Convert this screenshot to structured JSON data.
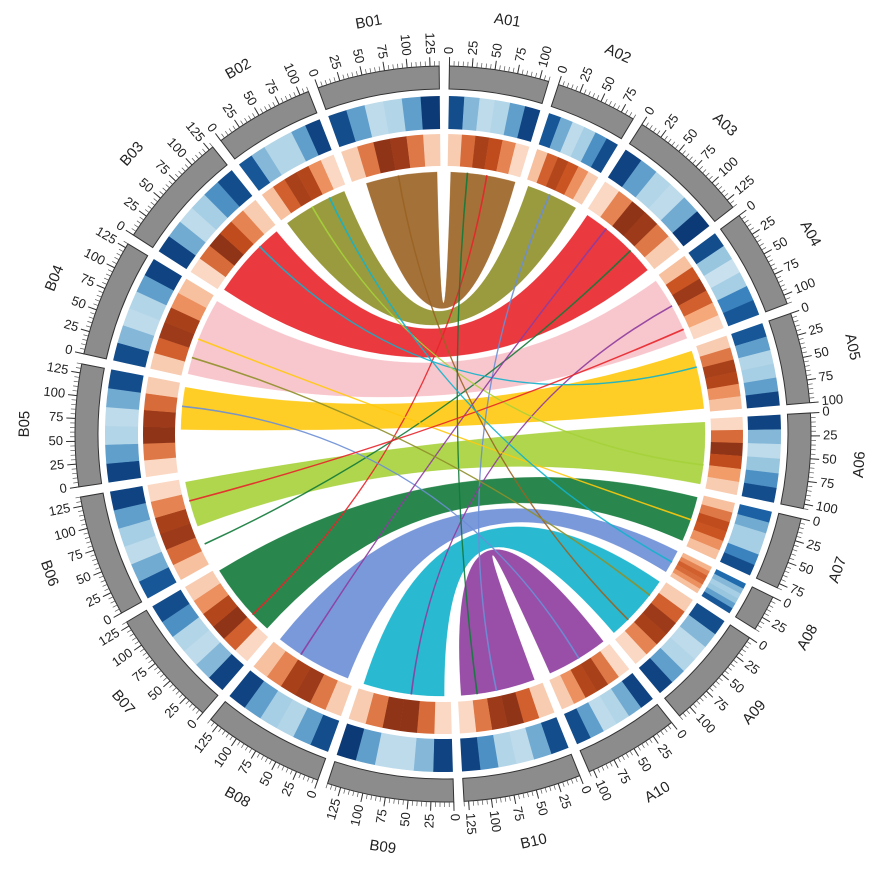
{
  "chart_data": {
    "type": "circos",
    "minor_tick_step": 5,
    "chromosomes": [
      {
        "name": "A01",
        "length": 110,
        "ticks": [
          0,
          25,
          50,
          75,
          100
        ],
        "gene_density": [
          0.85,
          0.4,
          0.2,
          0.25,
          0.5,
          0.9
        ],
        "repeat_density": [
          0.15,
          0.55,
          0.8,
          0.7,
          0.45,
          0.1
        ]
      },
      {
        "name": "A02",
        "length": 90,
        "ticks": [
          0,
          25,
          50,
          75
        ],
        "gene_density": [
          0.8,
          0.45,
          0.2,
          0.3,
          0.55,
          0.85
        ],
        "repeat_density": [
          0.2,
          0.6,
          0.75,
          0.65,
          0.4,
          0.15
        ]
      },
      {
        "name": "A03",
        "length": 135,
        "ticks": [
          0,
          25,
          50,
          75,
          100,
          125
        ],
        "gene_density": [
          0.9,
          0.5,
          0.25,
          0.2,
          0.45,
          0.95
        ],
        "repeat_density": [
          0.1,
          0.45,
          0.9,
          0.85,
          0.5,
          0.15
        ]
      },
      {
        "name": "A04",
        "length": 110,
        "ticks": [
          0,
          25,
          50,
          75,
          100
        ],
        "gene_density": [
          0.85,
          0.35,
          0.15,
          0.3,
          0.6,
          0.8
        ],
        "repeat_density": [
          0.2,
          0.65,
          0.85,
          0.6,
          0.3,
          0.1
        ]
      },
      {
        "name": "A05",
        "length": 100,
        "ticks": [
          0,
          25,
          50,
          75,
          100
        ],
        "gene_density": [
          0.8,
          0.5,
          0.25,
          0.3,
          0.5,
          0.9
        ],
        "repeat_density": [
          0.15,
          0.5,
          0.8,
          0.75,
          0.4,
          0.2
        ]
      },
      {
        "name": "A06",
        "length": 105,
        "ticks": [
          0,
          25,
          50,
          75,
          100
        ],
        "gene_density": [
          0.9,
          0.4,
          0.2,
          0.35,
          0.55,
          0.85
        ],
        "repeat_density": [
          0.1,
          0.55,
          0.9,
          0.7,
          0.35,
          0.15
        ]
      },
      {
        "name": "A07",
        "length": 80,
        "ticks": [
          0,
          25,
          50,
          75
        ],
        "gene_density": [
          0.75,
          0.45,
          0.3,
          0.3,
          0.6,
          0.85
        ],
        "repeat_density": [
          0.2,
          0.5,
          0.7,
          0.65,
          0.4,
          0.2
        ]
      },
      {
        "name": "A08",
        "length": 40,
        "ticks": [
          0,
          25
        ],
        "gene_density": [
          0.7,
          0.4,
          0.3,
          0.35,
          0.5,
          0.8
        ],
        "repeat_density": [
          0.25,
          0.45,
          0.6,
          0.55,
          0.4,
          0.2
        ]
      },
      {
        "name": "A09",
        "length": 115,
        "ticks": [
          0,
          25,
          50,
          75,
          100
        ],
        "gene_density": [
          0.85,
          0.4,
          0.2,
          0.25,
          0.5,
          0.9
        ],
        "repeat_density": [
          0.15,
          0.6,
          0.85,
          0.8,
          0.45,
          0.1
        ]
      },
      {
        "name": "A10",
        "length": 105,
        "ticks": [
          0,
          25,
          50,
          75,
          100
        ],
        "gene_density": [
          0.9,
          0.45,
          0.25,
          0.2,
          0.5,
          0.85
        ],
        "repeat_density": [
          0.1,
          0.5,
          0.8,
          0.75,
          0.4,
          0.15
        ]
      },
      {
        "name": "B10",
        "length": 130,
        "ticks": [
          0,
          25,
          50,
          75,
          100,
          125
        ],
        "gene_density": [
          0.85,
          0.45,
          0.2,
          0.25,
          0.55,
          0.9
        ],
        "repeat_density": [
          0.15,
          0.6,
          0.9,
          0.85,
          0.5,
          0.1
        ]
      },
      {
        "name": "B09",
        "length": 140,
        "ticks": [
          0,
          25,
          50,
          75,
          100,
          125
        ],
        "gene_density": [
          0.9,
          0.4,
          0.2,
          0.2,
          0.5,
          0.95
        ],
        "repeat_density": [
          0.1,
          0.55,
          0.9,
          0.9,
          0.5,
          0.15
        ]
      },
      {
        "name": "B08",
        "length": 135,
        "ticks": [
          0,
          25,
          50,
          75,
          100,
          125
        ],
        "gene_density": [
          0.85,
          0.5,
          0.25,
          0.3,
          0.5,
          0.9
        ],
        "repeat_density": [
          0.15,
          0.5,
          0.85,
          0.8,
          0.45,
          0.2
        ]
      },
      {
        "name": "B07",
        "length": 130,
        "ticks": [
          0,
          25,
          50,
          75,
          100,
          125
        ],
        "gene_density": [
          0.9,
          0.4,
          0.2,
          0.25,
          0.55,
          0.85
        ],
        "repeat_density": [
          0.1,
          0.6,
          0.9,
          0.75,
          0.4,
          0.15
        ]
      },
      {
        "name": "B06",
        "length": 135,
        "ticks": [
          0,
          25,
          50,
          75,
          100,
          125
        ],
        "gene_density": [
          0.8,
          0.45,
          0.2,
          0.3,
          0.5,
          0.9
        ],
        "repeat_density": [
          0.2,
          0.55,
          0.85,
          0.8,
          0.45,
          0.1
        ]
      },
      {
        "name": "B05",
        "length": 135,
        "ticks": [
          0,
          25,
          50,
          75,
          100,
          125
        ],
        "gene_density": [
          0.9,
          0.5,
          0.25,
          0.2,
          0.45,
          0.85
        ],
        "repeat_density": [
          0.1,
          0.5,
          0.9,
          0.85,
          0.55,
          0.15
        ]
      },
      {
        "name": "B04",
        "length": 130,
        "ticks": [
          0,
          25,
          50,
          75,
          100,
          125
        ],
        "gene_density": [
          0.85,
          0.4,
          0.2,
          0.25,
          0.5,
          0.9
        ],
        "repeat_density": [
          0.15,
          0.6,
          0.85,
          0.8,
          0.4,
          0.2
        ]
      },
      {
        "name": "B03",
        "length": 130,
        "ticks": [
          0,
          25,
          50,
          75,
          100,
          125
        ],
        "gene_density": [
          0.9,
          0.45,
          0.2,
          0.3,
          0.55,
          0.85
        ],
        "repeat_density": [
          0.1,
          0.55,
          0.9,
          0.7,
          0.45,
          0.15
        ]
      },
      {
        "name": "B02",
        "length": 110,
        "ticks": [
          0,
          25,
          50,
          75,
          100
        ],
        "gene_density": [
          0.8,
          0.4,
          0.25,
          0.25,
          0.5,
          0.9
        ],
        "repeat_density": [
          0.2,
          0.6,
          0.8,
          0.75,
          0.4,
          0.1
        ]
      },
      {
        "name": "B01",
        "length": 135,
        "ticks": [
          0,
          25,
          50,
          75,
          100,
          125
        ],
        "gene_density": [
          0.85,
          0.5,
          0.2,
          0.25,
          0.5,
          0.95
        ],
        "repeat_density": [
          0.15,
          0.5,
          0.9,
          0.85,
          0.5,
          0.15
        ]
      }
    ],
    "links": [
      {
        "a": "A01",
        "a_range": [
          5,
          105
        ],
        "b": "B01",
        "b_range": [
          20,
          130
        ],
        "color": "#9a6324"
      },
      {
        "a": "A02",
        "a_range": [
          5,
          85
        ],
        "b": "B02",
        "b_range": [
          5,
          105
        ],
        "color": "#8f8f2a"
      },
      {
        "a": "A03",
        "a_range": [
          5,
          130
        ],
        "b": "B03",
        "b_range": [
          5,
          125
        ],
        "color": "#e8232a"
      },
      {
        "a": "A04",
        "a_range": [
          5,
          105
        ],
        "b": "B04",
        "b_range": [
          5,
          125
        ],
        "color": "#f7c1c8"
      },
      {
        "a": "A05",
        "a_range": [
          5,
          95
        ],
        "b": "B05",
        "b_range": [
          65,
          130
        ],
        "color": "#ffc90e"
      },
      {
        "a": "A06",
        "a_range": [
          5,
          100
        ],
        "b": "B06",
        "b_range": [
          60,
          130
        ],
        "color": "#a6d13a"
      },
      {
        "a": "A07",
        "a_range": [
          5,
          75
        ],
        "b": "B07",
        "b_range": [
          10,
          125
        ],
        "color": "#127a3a"
      },
      {
        "a": "A08",
        "a_range": [
          2,
          38
        ],
        "b": "B08",
        "b_range": [
          10,
          130
        ],
        "color": "#6c8ed6"
      },
      {
        "a": "A09",
        "a_range": [
          5,
          110
        ],
        "b": "B09",
        "b_range": [
          10,
          135
        ],
        "color": "#12b2cc"
      },
      {
        "a": "A10",
        "a_range": [
          5,
          100
        ],
        "b": "B10",
        "b_range": [
          10,
          125
        ],
        "color": "#8e3c9e"
      },
      {
        "a": "A01",
        "a_range": [
          60,
          61
        ],
        "b": "B07",
        "b_range": [
          40,
          41
        ],
        "color": "#e8232a"
      },
      {
        "a": "A02",
        "a_range": [
          40,
          41
        ],
        "b": "B10",
        "b_range": [
          70,
          71
        ],
        "color": "#6c8ed6"
      },
      {
        "a": "A03",
        "a_range": [
          90,
          91
        ],
        "b": "B06",
        "b_range": [
          30,
          31
        ],
        "color": "#127a3a"
      },
      {
        "a": "A04",
        "a_range": [
          50,
          51
        ],
        "b": "B09",
        "b_range": [
          60,
          61
        ],
        "color": "#8e3c9e"
      },
      {
        "a": "A05",
        "a_range": [
          30,
          31
        ],
        "b": "B03",
        "b_range": [
          90,
          91
        ],
        "color": "#12b2cc"
      },
      {
        "a": "A06",
        "a_range": [
          70,
          71
        ],
        "b": "B02",
        "b_range": [
          50,
          51
        ],
        "color": "#a6d13a"
      },
      {
        "a": "A07",
        "a_range": [
          40,
          41
        ],
        "b": "B04",
        "b_range": [
          60,
          61
        ],
        "color": "#ffc90e"
      },
      {
        "a": "A09",
        "a_range": [
          80,
          81
        ],
        "b": "B01",
        "b_range": [
          70,
          71
        ],
        "color": "#9a6324"
      },
      {
        "a": "A10",
        "a_range": [
          50,
          51
        ],
        "b": "B05",
        "b_range": [
          100,
          101
        ],
        "color": "#6c8ed6"
      },
      {
        "a": "A01",
        "a_range": [
          30,
          31
        ],
        "b": "B10",
        "b_range": [
          100,
          101
        ],
        "color": "#127a3a"
      },
      {
        "a": "A03",
        "a_range": [
          40,
          41
        ],
        "b": "B08",
        "b_range": [
          90,
          91
        ],
        "color": "#8e3c9e"
      },
      {
        "a": "A04",
        "a_range": [
          90,
          91
        ],
        "b": "B06",
        "b_range": [
          100,
          101
        ],
        "color": "#e8232a"
      },
      {
        "a": "A08",
        "a_range": [
          20,
          21
        ],
        "b": "B02",
        "b_range": [
          80,
          81
        ],
        "color": "#12b2cc"
      },
      {
        "a": "A09",
        "a_range": [
          30,
          31
        ],
        "b": "B04",
        "b_range": [
          30,
          31
        ],
        "color": "#8f8f2a"
      }
    ]
  }
}
